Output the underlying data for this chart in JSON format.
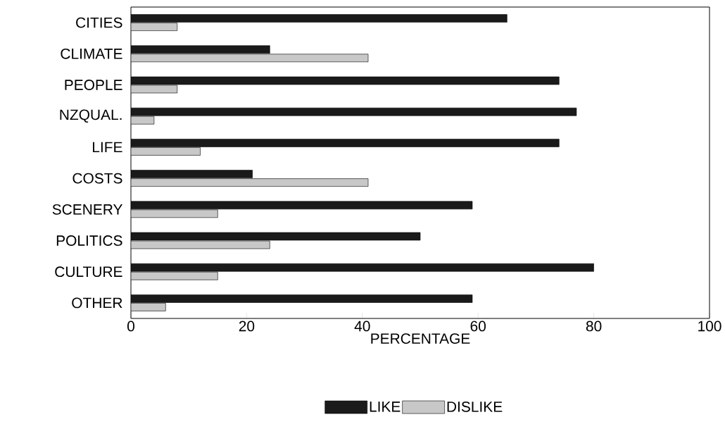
{
  "chart_data": {
    "type": "bar",
    "orientation": "horizontal",
    "xlabel": "PERCENTAGE",
    "categories": [
      "CITIES",
      "CLIMATE",
      "PEOPLE",
      "NZQUAL.",
      "LIFE",
      "COSTS",
      "SCENERY",
      "POLITICS",
      "CULTURE",
      "OTHER"
    ],
    "series": [
      {
        "name": "LIKE",
        "color": "#1a1a1a",
        "values": [
          65,
          24,
          74,
          77,
          74,
          21,
          59,
          50,
          80,
          59
        ]
      },
      {
        "name": "DISLIKE",
        "color": "#c8c8c8",
        "values": [
          8,
          41,
          8,
          4,
          12,
          41,
          15,
          24,
          15,
          6
        ]
      }
    ],
    "xlim": [
      0,
      100
    ],
    "xticks": [
      0,
      20,
      40,
      60,
      80,
      100
    ],
    "grid": false,
    "legend": "bottom"
  }
}
